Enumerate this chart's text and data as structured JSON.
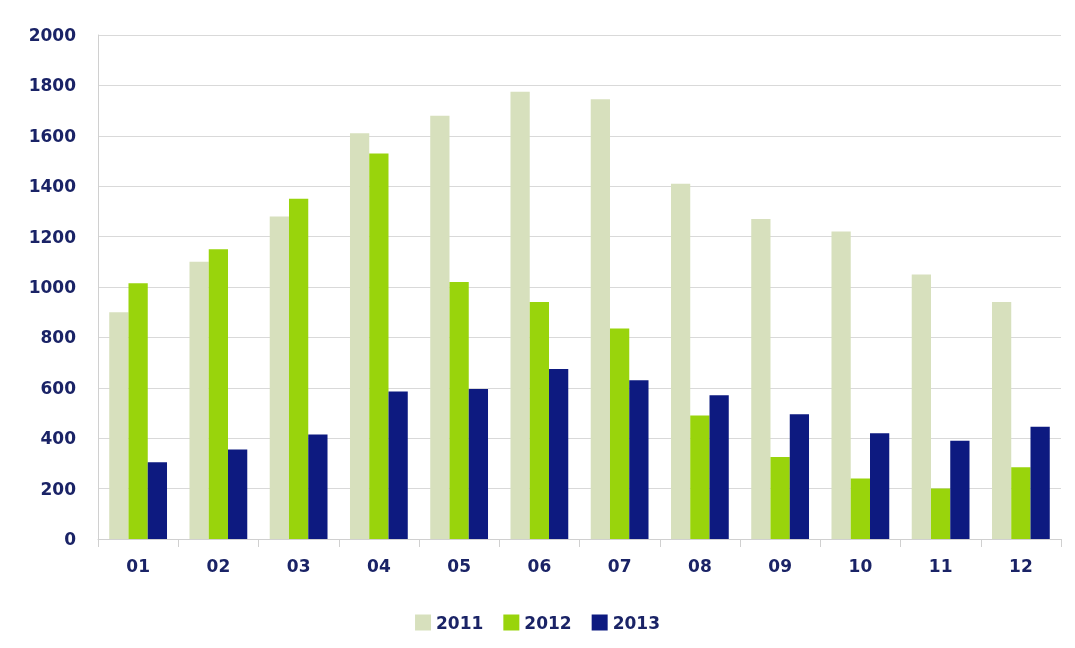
{
  "chart_data": {
    "type": "bar",
    "categories": [
      "01",
      "02",
      "03",
      "04",
      "05",
      "06",
      "07",
      "08",
      "09",
      "10",
      "11",
      "12"
    ],
    "series": [
      {
        "name": "2011",
        "color": "#d7e0bd",
        "values": [
          900,
          1100,
          1280,
          1610,
          1680,
          1775,
          1745,
          1410,
          1270,
          1220,
          1050,
          940
        ]
      },
      {
        "name": "2012",
        "color": "#99d40c",
        "values": [
          1015,
          1150,
          1350,
          1530,
          1020,
          940,
          835,
          490,
          325,
          240,
          200,
          285
        ]
      },
      {
        "name": "2013",
        "color": "#0d1a80",
        "values": [
          305,
          355,
          415,
          585,
          595,
          675,
          630,
          570,
          495,
          420,
          390,
          445
        ]
      }
    ],
    "ylim": [
      0,
      2000
    ],
    "yticks": [
      0,
      200,
      400,
      600,
      800,
      1000,
      1200,
      1400,
      1600,
      1800,
      2000
    ],
    "grid": "y",
    "legend": "bottom"
  }
}
